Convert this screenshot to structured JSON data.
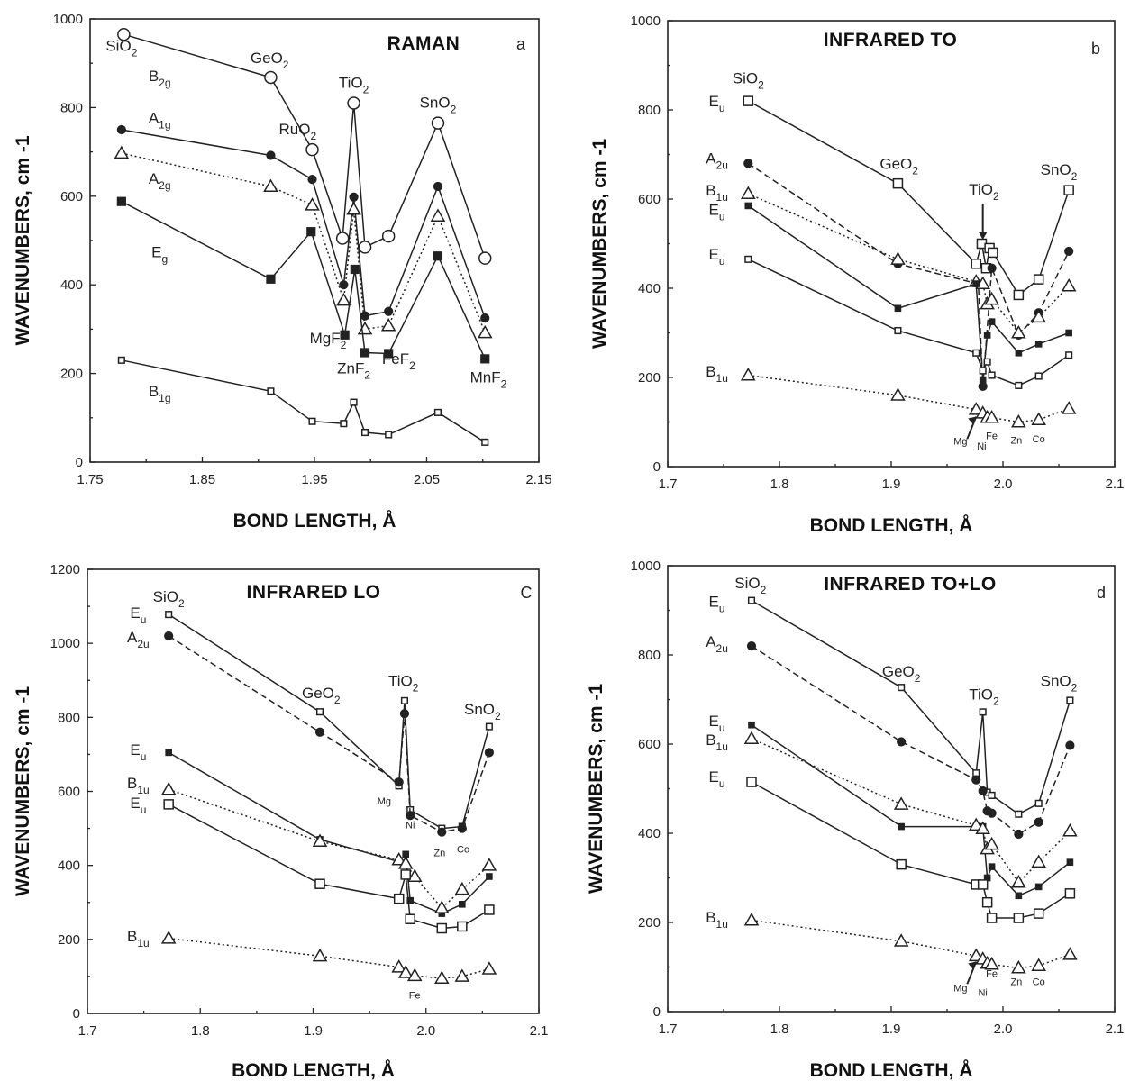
{
  "chart_data": [
    {
      "type": "line",
      "panel": "a",
      "title": "RAMAN",
      "xlabel": "BOND LENGTH, Å",
      "ylabel": "WAVENUMBERS, cm -1",
      "xlim": [
        1.75,
        2.15
      ],
      "ylim": [
        0,
        1000
      ],
      "xticks": [
        "1.75",
        "1.85",
        "1.95",
        "2.05",
        "2.15"
      ],
      "yticks": [
        "0",
        "200",
        "400",
        "600",
        "800",
        "1000"
      ],
      "grid": false,
      "annotations": [
        {
          "base": "SiO",
          "sub": "2",
          "x": 1.778,
          "y": 928
        },
        {
          "base": "GeO",
          "sub": "2",
          "x": 1.91,
          "y": 900
        },
        {
          "base": "RuO",
          "sub": "2",
          "x": 1.935,
          "y": 740
        },
        {
          "base": "TiO",
          "sub": "2",
          "x": 1.985,
          "y": 845
        },
        {
          "base": "SnO",
          "sub": "2",
          "x": 2.06,
          "y": 800
        },
        {
          "base": "MgF",
          "sub": "2",
          "x": 1.962,
          "y": 268
        },
        {
          "base": "ZnF",
          "sub": "2",
          "x": 1.985,
          "y": 200
        },
        {
          "base": "FeF",
          "sub": "2",
          "x": 2.025,
          "y": 222
        },
        {
          "base": "MnF",
          "sub": "2",
          "x": 2.105,
          "y": 180
        },
        {
          "base": "B",
          "sub": "2g",
          "x": 1.812,
          "y": 860
        },
        {
          "base": "A",
          "sub": "1g",
          "x": 1.812,
          "y": 765
        },
        {
          "base": "A",
          "sub": "2g",
          "x": 1.812,
          "y": 628
        },
        {
          "base": "E",
          "sub": "g",
          "x": 1.812,
          "y": 462
        },
        {
          "base": "B",
          "sub": "1g",
          "x": 1.812,
          "y": 148
        }
      ],
      "series": [
        {
          "mode": "B2g",
          "marker": "open-circle",
          "style": "solid",
          "x": [
            1.78,
            1.911,
            1.948,
            1.975,
            1.985,
            1.995,
            2.016,
            2.06,
            2.102
          ],
          "y": [
            965,
            868,
            705,
            505,
            810,
            485,
            510,
            765,
            460
          ]
        },
        {
          "mode": "A1g",
          "marker": "filled-circle",
          "style": "solid",
          "x": [
            1.778,
            1.911,
            1.948,
            1.976,
            1.985,
            1.995,
            2.016,
            2.06,
            2.102
          ],
          "y": [
            750,
            692,
            638,
            400,
            598,
            330,
            340,
            622,
            325
          ]
        },
        {
          "mode": "A2g",
          "marker": "open-triangle",
          "style": "dotted",
          "x": [
            1.778,
            1.911,
            1.948,
            1.976,
            1.985,
            1.995,
            2.016,
            2.06,
            2.102
          ],
          "y": [
            697,
            622,
            580,
            365,
            570,
            300,
            308,
            555,
            292
          ]
        },
        {
          "mode": "Eg",
          "marker": "filled-square",
          "style": "solid",
          "x": [
            1.778,
            1.911,
            1.947,
            1.977,
            1.986,
            1.995,
            2.016,
            2.06,
            2.102
          ],
          "y": [
            588,
            413,
            520,
            287,
            435,
            247,
            245,
            465,
            233
          ]
        },
        {
          "mode": "B1g",
          "marker": "small-square",
          "style": "solid",
          "x": [
            1.778,
            1.911,
            1.948,
            1.976,
            1.985,
            1.995,
            2.016,
            2.06,
            2.102
          ],
          "y": [
            230,
            160,
            92,
            87,
            135,
            67,
            62,
            112,
            45
          ]
        }
      ]
    },
    {
      "type": "line",
      "panel": "b",
      "title": "INFRARED TO",
      "xlabel": "BOND LENGTH, Å",
      "ylabel": "WAVENUMBERS, cm -1",
      "xlim": [
        1.7,
        2.1
      ],
      "ylim": [
        0,
        1000
      ],
      "xticks": [
        "1.7",
        "1.8",
        "1.9",
        "2.0",
        "2.1"
      ],
      "yticks": [
        "0",
        "200",
        "400",
        "600",
        "800",
        "1000"
      ],
      "grid": false,
      "annotations": [
        {
          "base": "SiO",
          "sub": "2",
          "x": 1.772,
          "y": 860
        },
        {
          "base": "GeO",
          "sub": "2",
          "x": 1.907,
          "y": 668
        },
        {
          "base": "TiO",
          "sub": "2",
          "x": 1.983,
          "y": 610
        },
        {
          "base": "SnO",
          "sub": "2",
          "x": 2.05,
          "y": 655
        },
        {
          "base": "E",
          "sub": "u",
          "x": 1.744,
          "y": 808
        },
        {
          "base": "A",
          "sub": "2u",
          "x": 1.744,
          "y": 680
        },
        {
          "base": "B",
          "sub": "1u",
          "x": 1.744,
          "y": 608
        },
        {
          "base": "E",
          "sub": "u",
          "x": 1.744,
          "y": 565
        },
        {
          "base": "E",
          "sub": "u",
          "x": 1.744,
          "y": 465
        },
        {
          "base": "B",
          "sub": "1u",
          "x": 1.744,
          "y": 202
        }
      ],
      "cation_labels": [
        "Mg",
        "Ni",
        "Fe",
        "Zn",
        "Co"
      ],
      "series": [
        {
          "mode": "Eu",
          "marker": "open-square",
          "style": "solid",
          "x": [
            1.772,
            1.906,
            1.976,
            1.981,
            1.985,
            1.988,
            1.991,
            2.014,
            2.032,
            2.059
          ],
          "y": [
            820,
            635,
            455,
            500,
            445,
            490,
            480,
            385,
            420,
            620
          ]
        },
        {
          "mode": "A2u",
          "marker": "filled-circle",
          "style": "dashed",
          "x": [
            1.772,
            1.906,
            1.978,
            1.982,
            1.99,
            2.014,
            2.032,
            2.059
          ],
          "y": [
            680,
            455,
            410,
            180,
            445,
            295,
            345,
            483
          ]
        },
        {
          "mode": "B1u",
          "marker": "open-triangle",
          "style": "dotted",
          "x": [
            1.772,
            1.906,
            1.976,
            1.982,
            1.986,
            1.99,
            2.014,
            2.032,
            2.059
          ],
          "y": [
            612,
            465,
            415,
            410,
            365,
            375,
            300,
            335,
            405
          ]
        },
        {
          "mode": "Eu",
          "marker": "small-filled-square",
          "style": "solid",
          "x": [
            1.772,
            1.906,
            1.976,
            1.982,
            1.986,
            1.99,
            2.014,
            2.032,
            2.059
          ],
          "y": [
            585,
            355,
            410,
            195,
            295,
            325,
            255,
            275,
            300
          ]
        },
        {
          "mode": "Eu",
          "marker": "small-square",
          "style": "solid",
          "x": [
            1.772,
            1.906,
            1.976,
            1.982,
            1.986,
            1.99,
            2.014,
            2.032,
            2.059
          ],
          "y": [
            465,
            305,
            255,
            215,
            235,
            205,
            182,
            203,
            250
          ]
        },
        {
          "mode": "B1u",
          "marker": "open-triangle",
          "style": "dotted",
          "x": [
            1.772,
            1.906,
            1.976,
            1.982,
            1.986,
            1.99,
            2.014,
            2.032,
            2.059
          ],
          "y": [
            205,
            160,
            128,
            120,
            110,
            110,
            100,
            105,
            130
          ]
        }
      ]
    },
    {
      "type": "line",
      "panel": "C",
      "title": "INFRARED LO",
      "xlabel": "BOND LENGTH, Å",
      "ylabel": "WAVENUMBERS, cm -1",
      "xlim": [
        1.7,
        2.1
      ],
      "ylim": [
        0,
        1200
      ],
      "xticks": [
        "1.7",
        "1.8",
        "1.9",
        "2.0",
        "2.1"
      ],
      "yticks": [
        "0",
        "200",
        "400",
        "600",
        "800",
        "1000",
        "1200"
      ],
      "grid": false,
      "annotations": [
        {
          "base": "SiO",
          "sub": "2",
          "x": 1.772,
          "y": 1112
        },
        {
          "base": "GeO",
          "sub": "2",
          "x": 1.907,
          "y": 852
        },
        {
          "base": "TiO",
          "sub": "2",
          "x": 1.98,
          "y": 885
        },
        {
          "base": "SnO",
          "sub": "2",
          "x": 2.05,
          "y": 808
        },
        {
          "base": "E",
          "sub": "u",
          "x": 1.745,
          "y": 1068
        },
        {
          "base": "A",
          "sub": "2u",
          "x": 1.745,
          "y": 1003
        },
        {
          "base": "E",
          "sub": "u",
          "x": 1.745,
          "y": 698
        },
        {
          "base": "B",
          "sub": "1u",
          "x": 1.745,
          "y": 608
        },
        {
          "base": "E",
          "sub": "u",
          "x": 1.745,
          "y": 555
        },
        {
          "base": "B",
          "sub": "1u",
          "x": 1.745,
          "y": 195
        }
      ],
      "cation_labels": [
        "Mg",
        "Ni",
        "Zn",
        "Co",
        "Fe"
      ],
      "series": [
        {
          "mode": "Eu",
          "marker": "small-square",
          "style": "solid",
          "x": [
            1.772,
            1.906,
            1.976,
            1.981,
            1.986,
            2.014,
            2.032,
            2.056
          ],
          "y": [
            1078,
            815,
            615,
            845,
            550,
            500,
            505,
            775
          ]
        },
        {
          "mode": "A2u",
          "marker": "filled-circle",
          "style": "dashed",
          "x": [
            1.772,
            1.906,
            1.976,
            1.981,
            1.986,
            2.014,
            2.032,
            2.056
          ],
          "y": [
            1020,
            760,
            625,
            810,
            535,
            490,
            500,
            705
          ]
        },
        {
          "mode": "Eu",
          "marker": "small-filled-square",
          "style": "solid",
          "x": [
            1.772,
            1.906,
            1.976,
            1.982,
            1.986,
            2.014,
            2.032,
            2.056
          ],
          "y": [
            705,
            470,
            410,
            430,
            305,
            270,
            295,
            370
          ]
        },
        {
          "mode": "B1u",
          "marker": "open-triangle",
          "style": "dotted",
          "x": [
            1.772,
            1.906,
            1.976,
            1.982,
            1.99,
            2.014,
            2.032,
            2.056
          ],
          "y": [
            605,
            465,
            415,
            405,
            370,
            285,
            335,
            400
          ]
        },
        {
          "mode": "Eu",
          "marker": "open-square",
          "style": "solid",
          "x": [
            1.772,
            1.906,
            1.976,
            1.982,
            1.986,
            2.014,
            2.032,
            2.056
          ],
          "y": [
            565,
            350,
            310,
            375,
            255,
            230,
            235,
            280
          ]
        },
        {
          "mode": "B1u",
          "marker": "open-triangle",
          "style": "dotted",
          "x": [
            1.772,
            1.906,
            1.976,
            1.982,
            1.99,
            2.014,
            2.032,
            2.056
          ],
          "y": [
            203,
            155,
            125,
            110,
            102,
            95,
            100,
            120
          ]
        }
      ]
    },
    {
      "type": "line",
      "panel": "d",
      "title": "INFRARED TO+LO",
      "xlabel": "BOND LENGTH, Å",
      "ylabel": "WAVENUMBERS, cm -1",
      "xlim": [
        1.7,
        2.1
      ],
      "ylim": [
        0,
        1000
      ],
      "xticks": [
        "1.7",
        "1.8",
        "1.9",
        "2.0",
        "2.1"
      ],
      "yticks": [
        "0",
        "200",
        "400",
        "600",
        "800",
        "1000"
      ],
      "grid": false,
      "annotations": [
        {
          "base": "SiO",
          "sub": "2",
          "x": 1.774,
          "y": 950
        },
        {
          "base": "GeO",
          "sub": "2",
          "x": 1.909,
          "y": 752
        },
        {
          "base": "TiO",
          "sub": "2",
          "x": 1.983,
          "y": 700
        },
        {
          "base": "SnO",
          "sub": "2",
          "x": 2.05,
          "y": 730
        },
        {
          "base": "E",
          "sub": "u",
          "x": 1.744,
          "y": 908
        },
        {
          "base": "A",
          "sub": "2u",
          "x": 1.744,
          "y": 818
        },
        {
          "base": "E",
          "sub": "u",
          "x": 1.744,
          "y": 640
        },
        {
          "base": "B",
          "sub": "1u",
          "x": 1.744,
          "y": 598
        },
        {
          "base": "E",
          "sub": "u",
          "x": 1.744,
          "y": 515
        },
        {
          "base": "B",
          "sub": "1u",
          "x": 1.744,
          "y": 200
        }
      ],
      "cation_labels": [
        "Mg",
        "Ni",
        "Fe",
        "Zn",
        "Co"
      ],
      "series": [
        {
          "mode": "Eu",
          "marker": "small-square",
          "style": "solid",
          "x": [
            1.775,
            1.909,
            1.976,
            1.982,
            1.986,
            1.99,
            2.014,
            2.032,
            2.06
          ],
          "y": [
            922,
            727,
            535,
            672,
            492,
            485,
            443,
            467,
            698
          ]
        },
        {
          "mode": "A2u",
          "marker": "filled-circle",
          "style": "dashed",
          "x": [
            1.775,
            1.909,
            1.976,
            1.982,
            1.986,
            1.99,
            2.014,
            2.032,
            2.06
          ],
          "y": [
            820,
            605,
            520,
            495,
            450,
            445,
            398,
            425,
            597
          ]
        },
        {
          "mode": "Eu",
          "marker": "small-filled-square",
          "style": "solid",
          "x": [
            1.775,
            1.909,
            1.976,
            1.982,
            1.986,
            1.99,
            2.014,
            2.032,
            2.06
          ],
          "y": [
            643,
            415,
            415,
            415,
            300,
            325,
            260,
            280,
            335
          ]
        },
        {
          "mode": "B1u",
          "marker": "open-triangle",
          "style": "dotted",
          "x": [
            1.775,
            1.909,
            1.976,
            1.982,
            1.986,
            1.99,
            2.014,
            2.032,
            2.06
          ],
          "y": [
            612,
            465,
            418,
            410,
            365,
            375,
            290,
            335,
            405
          ]
        },
        {
          "mode": "Eu",
          "marker": "open-square",
          "style": "solid",
          "x": [
            1.775,
            1.909,
            1.976,
            1.982,
            1.986,
            1.99,
            2.014,
            2.032,
            2.06
          ],
          "y": [
            515,
            330,
            285,
            285,
            245,
            210,
            210,
            220,
            265
          ]
        },
        {
          "mode": "B1u",
          "marker": "open-triangle",
          "style": "dotted",
          "x": [
            1.775,
            1.909,
            1.976,
            1.982,
            1.986,
            1.99,
            2.014,
            2.032,
            2.06
          ],
          "y": [
            205,
            158,
            125,
            118,
            108,
            106,
            98,
            103,
            128
          ]
        }
      ]
    }
  ]
}
